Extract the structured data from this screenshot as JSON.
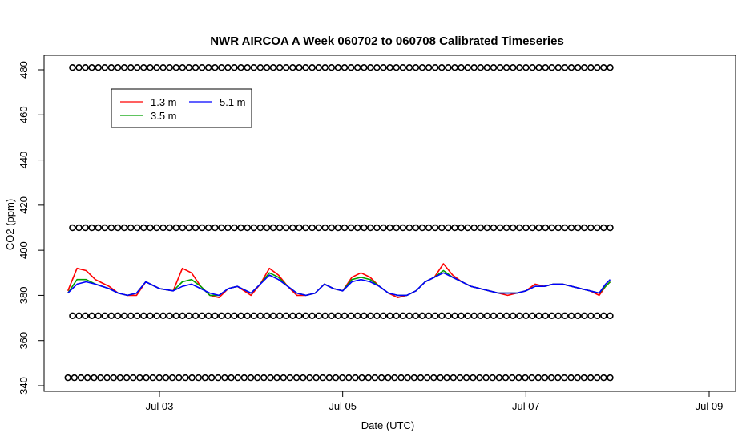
{
  "chart_data": {
    "type": "line",
    "title": "NWR AIRCOA A  Week 060702 to 060708  Calibrated Timeseries",
    "xlabel": "Date (UTC)",
    "ylabel": "CO2 (ppm)",
    "x_unit": "days (July 2006, UTC)",
    "xlim": [
      2.0,
      9.0
    ],
    "ylim": [
      340,
      484
    ],
    "xticks": [
      {
        "value": 3,
        "label": "Jul 03"
      },
      {
        "value": 5,
        "label": "Jul 05"
      },
      {
        "value": 7,
        "label": "Jul 07"
      },
      {
        "value": 9,
        "label": "Jul 09"
      }
    ],
    "yticks": [
      {
        "value": 340,
        "label": "340"
      },
      {
        "value": 360,
        "label": "360"
      },
      {
        "value": 380,
        "label": "380"
      },
      {
        "value": 400,
        "label": "400"
      },
      {
        "value": 420,
        "label": "420"
      },
      {
        "value": 440,
        "label": "440"
      },
      {
        "value": 460,
        "label": "460"
      },
      {
        "value": 480,
        "label": "480"
      }
    ],
    "grid": false,
    "legend_position": "top-left",
    "legend": [
      {
        "label": "1.3 m",
        "color": "#ff0000"
      },
      {
        "label": "5.1 m",
        "color": "#0000ff"
      },
      {
        "label": "3.5 m",
        "color": "#00a000"
      }
    ],
    "series": [
      {
        "name": "1.3 m",
        "color": "#ff0000",
        "x": [
          2.0,
          2.1,
          2.2,
          2.3,
          2.45,
          2.55,
          2.65,
          2.75,
          2.85,
          3.0,
          3.15,
          3.25,
          3.35,
          3.45,
          3.55,
          3.65,
          3.75,
          3.85,
          4.0,
          4.1,
          4.2,
          4.3,
          4.4,
          4.5,
          4.6,
          4.7,
          4.8,
          4.9,
          5.0,
          5.1,
          5.2,
          5.3,
          5.4,
          5.5,
          5.6,
          5.7,
          5.8,
          5.9,
          6.0,
          6.1,
          6.2,
          6.3,
          6.4,
          6.5,
          6.6,
          6.7,
          6.8,
          6.9,
          7.0,
          7.1,
          7.2,
          7.3,
          7.4,
          7.5,
          7.6,
          7.7,
          7.8,
          7.87,
          7.92
        ],
        "y": [
          382,
          392,
          391,
          387,
          384,
          381,
          380,
          380,
          386,
          383,
          382,
          392,
          390,
          384,
          380,
          379,
          383,
          384,
          380,
          385,
          392,
          389,
          384,
          380,
          380,
          381,
          385,
          383,
          382,
          388,
          390,
          388,
          384,
          381,
          379,
          380,
          382,
          386,
          388,
          394,
          389,
          386,
          384,
          383,
          382,
          381,
          380,
          381,
          382,
          385,
          384,
          385,
          385,
          384,
          383,
          382,
          380,
          384,
          386
        ]
      },
      {
        "name": "3.5 m",
        "color": "#00a000",
        "x": [
          2.0,
          2.1,
          2.2,
          2.3,
          2.45,
          2.55,
          2.65,
          2.75,
          2.85,
          3.0,
          3.15,
          3.25,
          3.35,
          3.45,
          3.55,
          3.65,
          3.75,
          3.85,
          4.0,
          4.1,
          4.2,
          4.3,
          4.4,
          4.5,
          4.6,
          4.7,
          4.8,
          4.9,
          5.0,
          5.1,
          5.2,
          5.3,
          5.4,
          5.5,
          5.6,
          5.7,
          5.8,
          5.9,
          6.0,
          6.1,
          6.2,
          6.3,
          6.4,
          6.5,
          6.6,
          6.7,
          6.8,
          6.9,
          7.0,
          7.1,
          7.2,
          7.3,
          7.4,
          7.5,
          7.6,
          7.7,
          7.8,
          7.87,
          7.92
        ],
        "y": [
          381,
          387,
          387,
          385,
          383,
          381,
          380,
          381,
          386,
          383,
          382,
          386,
          387,
          384,
          380,
          380,
          383,
          384,
          381,
          385,
          390,
          388,
          384,
          381,
          380,
          381,
          385,
          383,
          382,
          387,
          388,
          387,
          384,
          381,
          380,
          380,
          382,
          386,
          388,
          391,
          388,
          386,
          384,
          383,
          382,
          381,
          381,
          381,
          382,
          384,
          384,
          385,
          385,
          384,
          383,
          382,
          381,
          384,
          386
        ]
      },
      {
        "name": "5.1 m",
        "color": "#0000ff",
        "x": [
          2.0,
          2.1,
          2.2,
          2.3,
          2.45,
          2.55,
          2.65,
          2.75,
          2.85,
          3.0,
          3.15,
          3.25,
          3.35,
          3.45,
          3.55,
          3.65,
          3.75,
          3.85,
          4.0,
          4.1,
          4.2,
          4.3,
          4.4,
          4.5,
          4.6,
          4.7,
          4.8,
          4.9,
          5.0,
          5.1,
          5.2,
          5.3,
          5.4,
          5.5,
          5.6,
          5.7,
          5.8,
          5.9,
          6.0,
          6.1,
          6.2,
          6.3,
          6.4,
          6.5,
          6.6,
          6.7,
          6.8,
          6.9,
          7.0,
          7.1,
          7.2,
          7.3,
          7.4,
          7.5,
          7.6,
          7.7,
          7.8,
          7.87,
          7.92
        ],
        "y": [
          381,
          385,
          386,
          385,
          383,
          381,
          380,
          381,
          386,
          383,
          382,
          384,
          385,
          383,
          381,
          380,
          383,
          384,
          381,
          385,
          389,
          387,
          384,
          381,
          380,
          381,
          385,
          383,
          382,
          386,
          387,
          386,
          384,
          381,
          380,
          380,
          382,
          386,
          388,
          390,
          388,
          386,
          384,
          383,
          382,
          381,
          381,
          381,
          382,
          384,
          384,
          385,
          385,
          384,
          383,
          382,
          381,
          385,
          387
        ]
      }
    ],
    "marker_rows": [
      {
        "y": 481,
        "x_start": 2.05,
        "x_end": 7.92,
        "count": 84,
        "marker": "circle"
      },
      {
        "y": 410,
        "x_start": 2.05,
        "x_end": 7.92,
        "count": 84,
        "marker": "circle"
      },
      {
        "y": 371,
        "x_start": 2.05,
        "x_end": 7.92,
        "count": 84,
        "marker": "circle"
      },
      {
        "y": 343.5,
        "x_start": 2.0,
        "x_end": 7.92,
        "count": 84,
        "marker": "circle"
      }
    ]
  }
}
